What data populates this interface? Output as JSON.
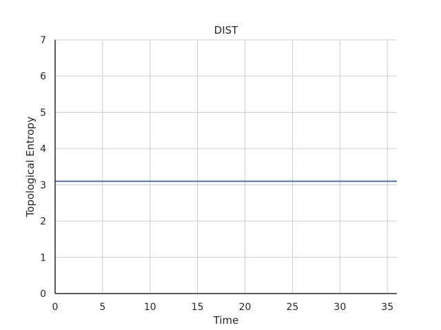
{
  "chart_data": {
    "type": "line",
    "title": "DIST",
    "xlabel": "Time",
    "ylabel": "Topological Entropy",
    "xlim": [
      0,
      36
    ],
    "ylim": [
      0,
      7
    ],
    "xticks": [
      0,
      5,
      10,
      15,
      20,
      25,
      30,
      35
    ],
    "yticks": [
      0,
      1,
      2,
      3,
      4,
      5,
      6,
      7
    ],
    "grid": true,
    "series": [
      {
        "color": "#4c72b0",
        "x": [
          0,
          36
        ],
        "y": [
          3.1,
          3.1
        ]
      }
    ]
  }
}
